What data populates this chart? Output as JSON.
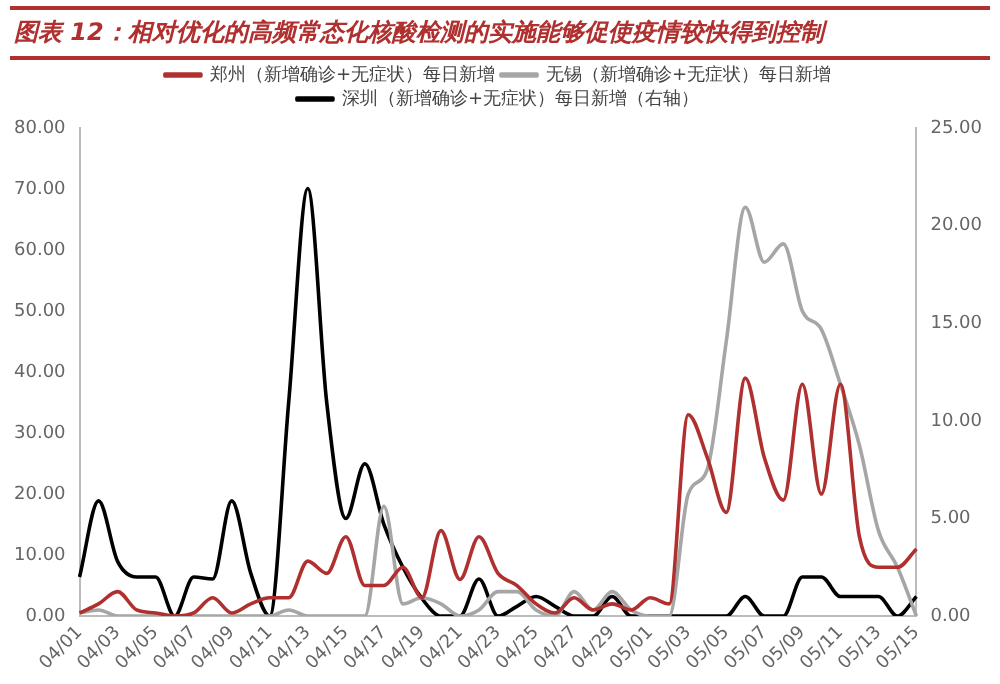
{
  "chart_data": {
    "type": "line",
    "title": "图表 12：相对优化的高频常态化核酸检测的实施能够促使疫情较快得到控制",
    "categories": [
      "04/01",
      null,
      "04/03",
      null,
      "04/05",
      null,
      "04/07",
      null,
      "04/09",
      null,
      "04/11",
      null,
      "04/13",
      null,
      "04/15",
      null,
      "04/17",
      null,
      "04/19",
      null,
      "04/21",
      null,
      "04/23",
      null,
      "04/25",
      null,
      "04/27",
      null,
      "04/29",
      null,
      "05/01",
      null,
      "05/03",
      null,
      "05/05",
      null,
      "05/07",
      null,
      "05/09",
      null,
      "05/11",
      null,
      "05/13",
      null,
      "05/15"
    ],
    "series": [
      {
        "name": "郑州（新增确诊+无症状）每日新增",
        "color": "#b0302f",
        "values": [
          0.5,
          2,
          4,
          1,
          0.5,
          0,
          0.5,
          3,
          0.5,
          2,
          3,
          3,
          9,
          7,
          13,
          5,
          5,
          8,
          3,
          14,
          6,
          13,
          7,
          5,
          2,
          0.5,
          3,
          1,
          2,
          1,
          3,
          2,
          33,
          26,
          17,
          39,
          26,
          19,
          38,
          20,
          38,
          13,
          8,
          8,
          11
        ]
      },
      {
        "name": "无锡（新增确诊+无症状）每日新增",
        "color": "#a6a6a6",
        "values": [
          0.5,
          1,
          0,
          0,
          0,
          0,
          0,
          0,
          0,
          0,
          0,
          1,
          0,
          0,
          0,
          0,
          18,
          2,
          3,
          2,
          0,
          1,
          4,
          4,
          1,
          0,
          4,
          1,
          4,
          1,
          0,
          0,
          20,
          24,
          45,
          67,
          58,
          61,
          50,
          47,
          38,
          28,
          14,
          8,
          0
        ]
      },
      {
        "name": "深圳（新增确诊+无症状）每日新增（右轴）",
        "color": "#000000",
        "axis": "y2",
        "values": [
          2,
          5.9,
          2.8,
          2,
          2,
          0,
          2,
          1.9,
          5.9,
          2.2,
          0,
          11,
          21.9,
          10.9,
          5,
          7.8,
          4.7,
          2.5,
          0.9,
          0,
          0,
          1.9,
          0,
          0.5,
          1,
          0.5,
          0,
          0,
          1,
          0,
          0,
          0,
          0,
          0,
          0,
          1,
          0,
          0,
          2,
          2,
          1,
          1,
          1,
          0,
          1
        ]
      }
    ],
    "ylim": [
      0,
      80
    ],
    "yticks": [
      {
        "value": 0,
        "label": "0.00"
      },
      {
        "value": 10,
        "label": "10.00"
      },
      {
        "value": 20,
        "label": "20.00"
      },
      {
        "value": 30,
        "label": "30.00"
      },
      {
        "value": 40,
        "label": "40.00"
      },
      {
        "value": 50,
        "label": "50.00"
      },
      {
        "value": 60,
        "label": "60.00"
      },
      {
        "value": 70,
        "label": "70.00"
      },
      {
        "value": 80,
        "label": "80.00"
      }
    ],
    "y2lim": [
      0,
      25
    ],
    "y2ticks": [
      {
        "value": 0,
        "label": "0.00"
      },
      {
        "value": 5,
        "label": "5.00"
      },
      {
        "value": 10,
        "label": "10.00"
      },
      {
        "value": 15,
        "label": "15.00"
      },
      {
        "value": 20,
        "label": "20.00"
      },
      {
        "value": 25,
        "label": "25.00"
      }
    ],
    "grid": false,
    "legend": "top",
    "marker": "none",
    "line_style": "solid"
  }
}
